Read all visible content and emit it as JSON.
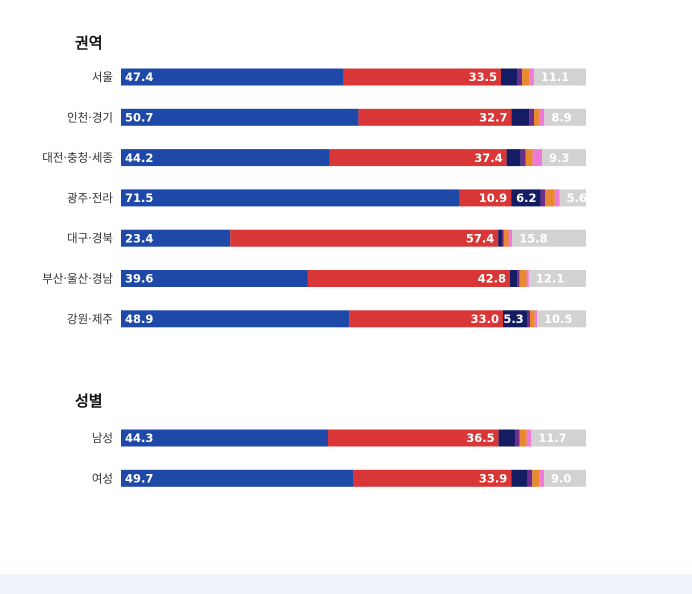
{
  "chart_data": {
    "type": "bar",
    "orientation": "horizontal",
    "stacked": true,
    "groups": [
      {
        "title": "권역",
        "rows": [
          {
            "label": "서울",
            "values": [
              47.4,
              33.5,
              3.5,
              1.0,
              1.5,
              1.0,
              11.1
            ]
          },
          {
            "label": "인천·경기",
            "values": [
              50.7,
              32.7,
              3.8,
              1.0,
              1.2,
              1.0,
              8.9
            ]
          },
          {
            "label": "대전·충청·세종",
            "values": [
              44.2,
              37.4,
              3.0,
              1.0,
              1.5,
              2.0,
              9.3
            ]
          },
          {
            "label": "광주·전라",
            "values": [
              71.5,
              10.9,
              6.2,
              1.0,
              2.0,
              1.0,
              5.6
            ]
          },
          {
            "label": "대구·경북",
            "values": [
              23.4,
              57.4,
              0.8,
              0.4,
              1.0,
              0.8,
              15.8
            ]
          },
          {
            "label": "부산·울산·경남",
            "values": [
              39.6,
              42.8,
              1.5,
              0.5,
              1.5,
              0.5,
              12.1
            ]
          },
          {
            "label": "강원·제주",
            "values": [
              48.9,
              33.0,
              5.3,
              0.5,
              1.0,
              0.5,
              10.5
            ]
          }
        ]
      },
      {
        "title": "성별",
        "rows": [
          {
            "label": "남성",
            "values": [
              44.3,
              36.5,
              3.5,
              1.0,
              1.5,
              1.0,
              11.7
            ]
          },
          {
            "label": "여성",
            "values": [
              49.7,
              33.9,
              3.5,
              1.0,
              1.5,
              1.0,
              9.0
            ]
          }
        ]
      }
    ],
    "series_colors": [
      "#1f49a8",
      "#d93737",
      "#141d63",
      "#6e2d8b",
      "#e8892b",
      "#ee7ad6",
      "#d2d2d2"
    ],
    "show_value_min": 5,
    "xlim": [
      0,
      100
    ],
    "grid": false,
    "legend": "none"
  },
  "footer": {
    "note": ""
  }
}
